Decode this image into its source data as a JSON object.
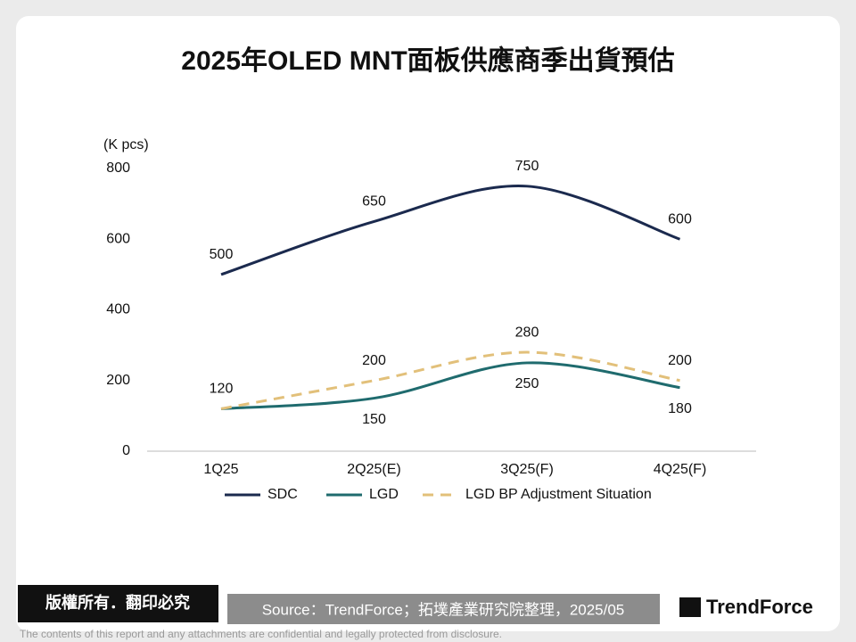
{
  "chart_data": {
    "type": "line",
    "title": "2025年OLED MNT面板供應商季出貨預估",
    "y_label": "(K pcs)",
    "categories": [
      "1Q25",
      "2Q25(E)",
      "3Q25(F)",
      "4Q25(F)"
    ],
    "series": [
      {
        "name": "SDC",
        "color": "#1b2a4e",
        "values": [
          500,
          650,
          750,
          600
        ]
      },
      {
        "name": "LGD",
        "color": "#1f6b6e",
        "values": [
          120,
          150,
          250,
          180
        ]
      },
      {
        "name": "LGD BP Adjustment Situation",
        "color": "#e2c07a",
        "dashed": true,
        "values": [
          120,
          200,
          280,
          200
        ]
      }
    ],
    "ylim": [
      0,
      800
    ],
    "yticks": [
      0,
      200,
      400,
      600,
      800
    ]
  },
  "footer": {
    "rights": "版權所有．翻印必究",
    "source": "Source：TrendForce；拓墣產業研究院整理，2025/05",
    "logo": "TrendForce",
    "disclaimer": "The contents of this report and any attachments are confidential and legally protected from disclosure."
  }
}
